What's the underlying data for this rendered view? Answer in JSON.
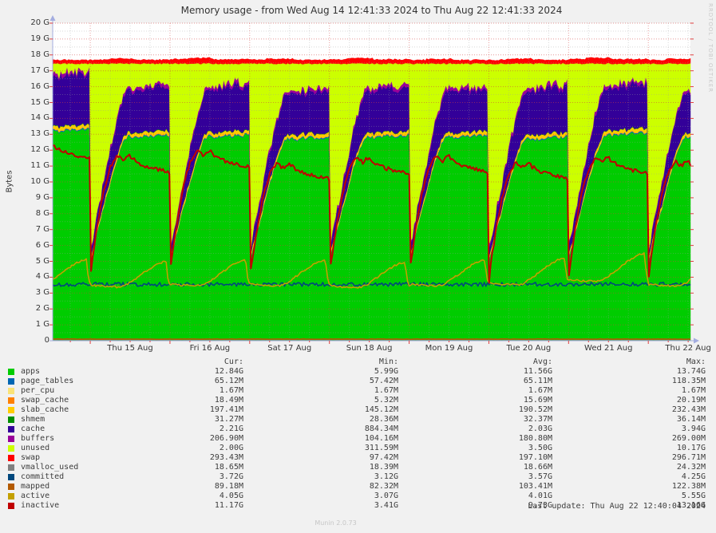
{
  "header": {
    "title": "Memory usage - from Wed Aug 14 12:41:33 2024 to Thu Aug 22 12:41:33 2024"
  },
  "watermark": "RRDTOOL / TOBI OETIKER",
  "footer": {
    "munin_version": "Munin 2.0.73",
    "last_update": "Last update: Thu Aug 22 12:40:04 2024"
  },
  "axes": {
    "y_axis_title": "Bytes",
    "y_tick_labels": [
      "20 G",
      "19 G",
      "18 G",
      "17 G",
      "16 G",
      "15 G",
      "14 G",
      "13 G",
      "12 G",
      "11 G",
      "10 G",
      "9 G",
      "8 G",
      "7 G",
      "6 G",
      "5 G",
      "4 G",
      "3 G",
      "2 G",
      "1 G",
      "0"
    ],
    "x_tick_labels": [
      "Thu 15 Aug",
      "Fri 16 Aug",
      "Sat 17 Aug",
      "Sun 18 Aug",
      "Mon 19 Aug",
      "Tue 20 Aug",
      "Wed 21 Aug",
      "Thu 22 Aug"
    ]
  },
  "legend": {
    "headers": {
      "cur": "Cur:",
      "min": "Min:",
      "avg": "Avg:",
      "max": "Max:"
    },
    "rows": [
      {
        "name": "apps",
        "cur": "12.84G",
        "min": "5.99G",
        "avg": "11.56G",
        "max": "13.74G"
      },
      {
        "name": "page_tables",
        "cur": "65.12M",
        "min": "57.42M",
        "avg": "65.11M",
        "max": "118.35M"
      },
      {
        "name": "per_cpu",
        "cur": "1.67M",
        "min": "1.67M",
        "avg": "1.67M",
        "max": "1.67M"
      },
      {
        "name": "swap_cache",
        "cur": "18.49M",
        "min": "5.32M",
        "avg": "15.69M",
        "max": "20.19M"
      },
      {
        "name": "slab_cache",
        "cur": "197.41M",
        "min": "145.12M",
        "avg": "190.52M",
        "max": "232.43M"
      },
      {
        "name": "shmem",
        "cur": "31.27M",
        "min": "28.36M",
        "avg": "32.37M",
        "max": "36.14M"
      },
      {
        "name": "cache",
        "cur": "2.21G",
        "min": "884.34M",
        "avg": "2.03G",
        "max": "3.94G"
      },
      {
        "name": "buffers",
        "cur": "206.90M",
        "min": "104.16M",
        "avg": "180.80M",
        "max": "269.00M"
      },
      {
        "name": "unused",
        "cur": "2.00G",
        "min": "311.59M",
        "avg": "3.50G",
        "max": "10.17G"
      },
      {
        "name": "swap",
        "cur": "293.43M",
        "min": "97.42M",
        "avg": "197.10M",
        "max": "296.71M"
      },
      {
        "name": "vmalloc_used",
        "cur": "18.65M",
        "min": "18.39M",
        "avg": "18.66M",
        "max": "24.32M"
      },
      {
        "name": "committed",
        "cur": "3.72G",
        "min": "3.12G",
        "avg": "3.57G",
        "max": "4.25G"
      },
      {
        "name": "mapped",
        "cur": "89.18M",
        "min": "82.32M",
        "avg": "103.41M",
        "max": "122.38M"
      },
      {
        "name": "active",
        "cur": "4.05G",
        "min": "3.07G",
        "avg": "4.01G",
        "max": "5.55G"
      },
      {
        "name": "inactive",
        "cur": "11.17G",
        "min": "3.41G",
        "avg": "9.73G",
        "max": "13.16G"
      }
    ]
  },
  "chart_data": {
    "type": "area",
    "subtype": "stacked-areas-with-overlay-lines",
    "title": "Memory usage",
    "time_start": "Wed Aug 14 12:41:33 2024",
    "time_end": "Thu Aug 22 12:41:33 2024",
    "total_hours": 192,
    "start_hour_of_day": 12.69,
    "first_midnight_offset_hours": 11.31,
    "ylim": [
      0,
      20
    ],
    "y_unit": "G",
    "y_major_step_g": 1,
    "y_minor_step_g": 0.5,
    "x_major_every_hours": 24,
    "x_minor_every_hours": 6,
    "grid": true,
    "legend_position": "bottom-table",
    "profile_note": "values in GiB; daily profile = [hour-of-day, value] breakpoints repeated each day; day_scale multiplies value per day cycle; noise = visual jitter amplitude",
    "series": [
      {
        "name": "apps",
        "role": "stack",
        "color": "#00CC00",
        "noise": 0.12,
        "day_scale": [
          1.03,
          1.0,
          1.0,
          0.99,
          1.0,
          1.0,
          0.99,
          1.01,
          1.0
        ],
        "profile": [
          [
            0,
            5.0
          ],
          [
            2,
            6.7
          ],
          [
            4,
            8.3
          ],
          [
            6,
            9.9
          ],
          [
            8,
            11.4
          ],
          [
            9,
            12.0
          ],
          [
            10,
            12.5
          ],
          [
            11,
            12.8
          ],
          [
            12,
            12.85
          ],
          [
            14,
            12.75
          ],
          [
            16,
            12.85
          ],
          [
            18,
            12.85
          ],
          [
            20,
            12.9
          ],
          [
            22,
            12.9
          ],
          [
            24,
            12.95
          ]
        ]
      },
      {
        "name": "page_tables",
        "role": "stack",
        "color": "#0066B3",
        "noise": 0.012,
        "profile": [
          [
            0,
            0.065
          ],
          [
            24,
            0.065
          ]
        ]
      },
      {
        "name": "per_cpu",
        "role": "stack",
        "color": "#FAE377",
        "noise": 0,
        "profile": [
          [
            0,
            0.002
          ],
          [
            24,
            0.002
          ]
        ]
      },
      {
        "name": "swap_cache",
        "role": "stack",
        "color": "#FF8000",
        "noise": 0.01,
        "profile": [
          [
            0,
            0.012
          ],
          [
            12,
            0.018
          ],
          [
            24,
            0.016
          ]
        ]
      },
      {
        "name": "slab_cache",
        "role": "stack",
        "color": "#FFCC00",
        "noise": 0.05,
        "profile": [
          [
            0,
            0.16
          ],
          [
            8,
            0.19
          ],
          [
            16,
            0.2
          ],
          [
            24,
            0.21
          ]
        ]
      },
      {
        "name": "shmem",
        "role": "stack",
        "color": "#008F00",
        "noise": 0.004,
        "profile": [
          [
            0,
            0.032
          ],
          [
            24,
            0.032
          ]
        ]
      },
      {
        "name": "cache",
        "role": "stack",
        "color": "#330099",
        "noise": 0.22,
        "day_scale": [
          1.18,
          1.0,
          1.03,
          0.97,
          1.0,
          0.96,
          1.05,
          1.02,
          0.95
        ],
        "profile": [
          [
            0,
            0.3
          ],
          [
            2,
            0.8
          ],
          [
            4,
            1.3
          ],
          [
            6,
            1.8
          ],
          [
            8,
            2.2
          ],
          [
            10,
            2.55
          ],
          [
            11,
            2.65
          ],
          [
            13,
            2.65
          ],
          [
            16,
            2.7
          ],
          [
            19,
            2.75
          ],
          [
            22,
            2.7
          ],
          [
            24,
            2.75
          ]
        ]
      },
      {
        "name": "buffers",
        "role": "stack",
        "color": "#990099",
        "noise": 0.09,
        "profile": [
          [
            0,
            0.14
          ],
          [
            8,
            0.18
          ],
          [
            16,
            0.2
          ],
          [
            24,
            0.21
          ]
        ]
      },
      {
        "name": "unused",
        "role": "stack",
        "color": "#CCFF00",
        "noise": 0.04,
        "fill_to": 17.45,
        "profile": [
          [
            0,
            0
          ],
          [
            24,
            0
          ]
        ]
      },
      {
        "name": "swap",
        "role": "stack",
        "color": "#FF0000",
        "noise": 0.015,
        "day_scale": [
          0.95,
          1.0,
          1.15,
          1.0,
          1.1,
          0.95,
          1.0,
          1.2,
          1.0
        ],
        "profile": [
          [
            0,
            0.24
          ],
          [
            5,
            0.24
          ],
          [
            5.2,
            0.3
          ],
          [
            13,
            0.3
          ],
          [
            13.2,
            0.24
          ],
          [
            24,
            0.24
          ]
        ]
      },
      {
        "name": "vmalloc_used",
        "role": "line",
        "color": "#808080",
        "width": 1,
        "noise": 0.002,
        "profile": [
          [
            0,
            0.019
          ],
          [
            24,
            0.019
          ]
        ]
      },
      {
        "name": "committed",
        "role": "line",
        "color": "#00487D",
        "width": 1.6,
        "noise": 0.13,
        "profile": [
          [
            0,
            3.55
          ],
          [
            24,
            3.55
          ]
        ]
      },
      {
        "name": "mapped",
        "role": "line",
        "color": "#B35A00",
        "width": 1.6,
        "noise": 0.015,
        "profile": [
          [
            0,
            0.1
          ],
          [
            24,
            0.1
          ]
        ]
      },
      {
        "name": "active",
        "role": "line",
        "color": "#C4A000",
        "width": 1.6,
        "noise": 0.06,
        "day_scale": [
          1.0,
          0.98,
          1.0,
          1.0,
          0.97,
          1.0,
          1.02,
          1.08,
          1.0
        ],
        "profile": [
          [
            0,
            3.55
          ],
          [
            4,
            3.5
          ],
          [
            8,
            3.45
          ],
          [
            10,
            3.5
          ],
          [
            11,
            3.6
          ],
          [
            13,
            3.9
          ],
          [
            15,
            4.2
          ],
          [
            17,
            4.5
          ],
          [
            19,
            4.8
          ],
          [
            21,
            5.0
          ],
          [
            22.8,
            5.1
          ],
          [
            23.3,
            4.1
          ],
          [
            23.7,
            3.7
          ],
          [
            24,
            3.6
          ]
        ]
      },
      {
        "name": "inactive",
        "role": "line",
        "color": "#C00000",
        "width": 2,
        "noise": 0.13,
        "day_scale": [
          1.09,
          1.01,
          1.04,
          0.97,
          1.0,
          1.01,
          0.97,
          1.0,
          0.98
        ],
        "profile": [
          [
            0,
            3.6
          ],
          [
            0.3,
            4.6
          ],
          [
            1,
            5.6
          ],
          [
            2,
            7.0
          ],
          [
            3,
            8.2
          ],
          [
            4,
            9.3
          ],
          [
            5,
            10.1
          ],
          [
            6,
            10.8
          ],
          [
            7,
            11.2
          ],
          [
            8,
            11.5
          ],
          [
            9,
            11.4
          ],
          [
            10,
            11.2
          ],
          [
            11,
            11.45
          ],
          [
            12,
            11.5
          ],
          [
            13,
            11.3
          ],
          [
            14,
            11.15
          ],
          [
            15,
            11.0
          ],
          [
            16,
            10.95
          ],
          [
            17,
            10.85
          ],
          [
            18,
            10.8
          ],
          [
            19,
            10.75
          ],
          [
            20,
            10.7
          ],
          [
            21,
            10.65
          ],
          [
            22,
            10.6
          ],
          [
            23,
            10.55
          ],
          [
            24,
            10.5
          ]
        ]
      }
    ],
    "style": {
      "plot_background": "#ffffff",
      "page_background": "#f1f1f1",
      "grid_major_color": "#d24040",
      "grid_minor_color": "#9a9a9a",
      "axis_arrow_color": "#a4ade0",
      "tick_color": "#e04040"
    }
  }
}
